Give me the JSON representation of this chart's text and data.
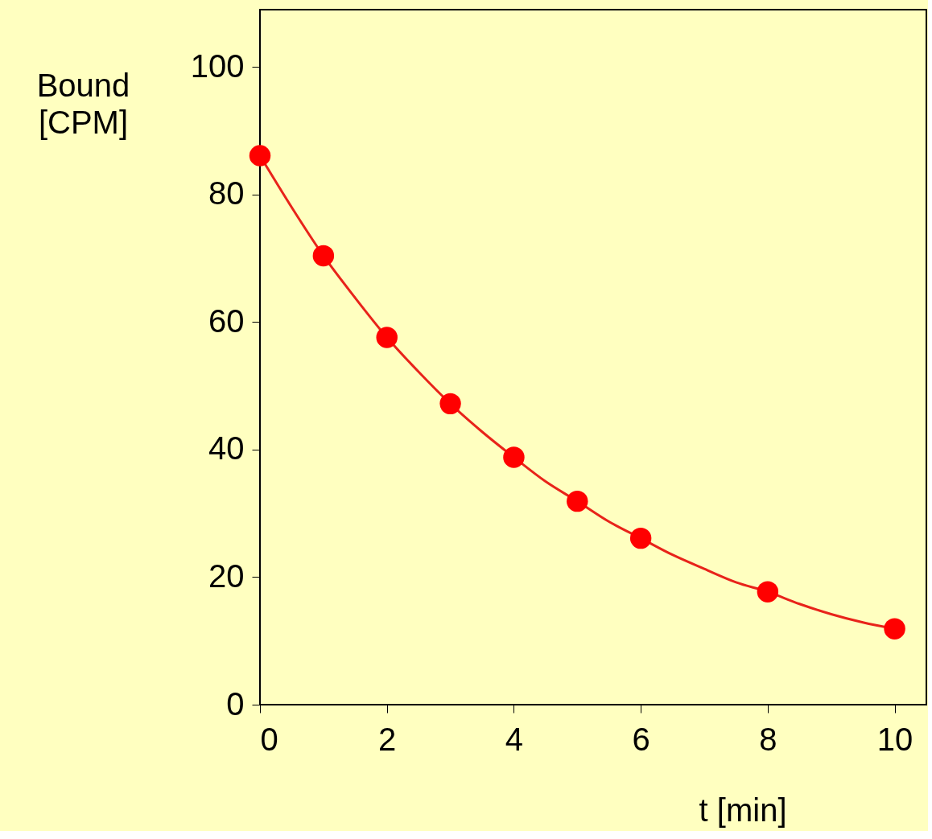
{
  "chart_data": {
    "type": "scatter",
    "xlabel": "t [min]",
    "ylabel": "Bound\n[CPM]",
    "xlim": [
      0,
      10.5
    ],
    "ylim": [
      0,
      109
    ],
    "xticks": [
      0,
      2,
      4,
      6,
      8,
      10
    ],
    "yticks": [
      0,
      20,
      40,
      60,
      80,
      100
    ],
    "grid": false,
    "series": [
      {
        "type": "line",
        "color": "#e8231a",
        "line_style": "solid",
        "marker": "none",
        "x": [
          0,
          0.5,
          1,
          1.5,
          2,
          2.5,
          3,
          3.5,
          4,
          4.5,
          5,
          5.5,
          6,
          6.5,
          7,
          7.5,
          8,
          8.5,
          9,
          9.5,
          10
        ],
        "values": [
          86.1,
          78,
          70.4,
          63.8,
          57.6,
          52.2,
          47.2,
          42.8,
          38.8,
          35,
          31.9,
          28.7,
          26.1,
          23.5,
          21.3,
          19.2,
          17.7,
          15.8,
          14.2,
          12.9,
          11.9
        ]
      },
      {
        "color": "#ff0000",
        "marker": "circle",
        "x": [
          0,
          1,
          2,
          3,
          4,
          5,
          6,
          8,
          10
        ],
        "values": [
          86.1,
          70.4,
          57.6,
          47.2,
          38.8,
          31.9,
          26.1,
          17.7,
          11.9
        ]
      }
    ]
  }
}
